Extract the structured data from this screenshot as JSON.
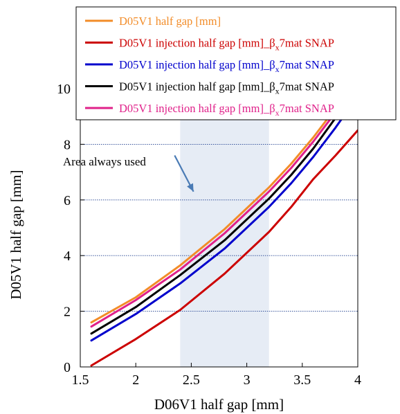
{
  "chart_data": {
    "type": "line",
    "xlabel": "D06V1 half gap [mm]",
    "ylabel": "D05V1 half gap [mm]",
    "xlim": [
      1.5,
      4
    ],
    "ylim": [
      0,
      10
    ],
    "x_ticks": [
      "1.5",
      "2",
      "2.5",
      "3",
      "3.5",
      "4"
    ],
    "y_ticks": [
      "0",
      "2",
      "4",
      "6",
      "8",
      "10"
    ],
    "grid": "horizontal dotted",
    "legend_placement": "top",
    "shaded_region": {
      "x": [
        2.4,
        3.2
      ],
      "color": "#e6ecf5"
    },
    "annotation": {
      "text": "Area always used",
      "arrow_from": [
        2.35,
        7.6
      ],
      "arrow_to": [
        2.52,
        6.3
      ],
      "color": "#4a7bb5"
    },
    "series": [
      {
        "name": "D05V1 half gap [mm]",
        "color": "#f28c28",
        "x": [
          1.6,
          2.0,
          2.4,
          2.8,
          3.2,
          3.4,
          3.6,
          3.8,
          3.9
        ],
        "y": [
          1.6,
          2.5,
          3.65,
          4.95,
          6.45,
          7.3,
          8.25,
          9.3,
          9.85
        ]
      },
      {
        "name": "D05V1 injection half gap [mm]_βx7mat SNAP",
        "color": "#cc0000",
        "x": [
          1.6,
          2.0,
          2.4,
          2.8,
          3.2,
          3.4,
          3.6,
          3.8,
          4.0
        ],
        "y": [
          0.05,
          1.0,
          2.05,
          3.35,
          4.85,
          5.75,
          6.75,
          7.6,
          8.5
        ]
      },
      {
        "name": "D05V1 injection half gap [mm]_βx7mat SNAP",
        "color": "#0000cc",
        "x": [
          1.6,
          2.0,
          2.4,
          2.8,
          3.2,
          3.4,
          3.6,
          3.8,
          3.95
        ],
        "y": [
          0.95,
          1.9,
          3.0,
          4.25,
          5.75,
          6.6,
          7.55,
          8.6,
          9.45
        ]
      },
      {
        "name": "D05V1 injection half gap [mm]_βx7mat SNAP",
        "color": "#000000",
        "x": [
          1.6,
          2.0,
          2.4,
          2.8,
          3.2,
          3.4,
          3.6,
          3.8,
          3.92
        ],
        "y": [
          1.2,
          2.15,
          3.3,
          4.55,
          6.05,
          6.9,
          7.85,
          8.95,
          9.6
        ]
      },
      {
        "name": "D05V1 injection half gap [mm]_βx7mat SNAP",
        "color": "#e0218a",
        "x": [
          1.6,
          2.0,
          2.4,
          2.8,
          3.2,
          3.4,
          3.6,
          3.8,
          3.9
        ],
        "y": [
          1.45,
          2.4,
          3.5,
          4.8,
          6.3,
          7.15,
          8.1,
          9.15,
          9.75
        ]
      }
    ]
  }
}
